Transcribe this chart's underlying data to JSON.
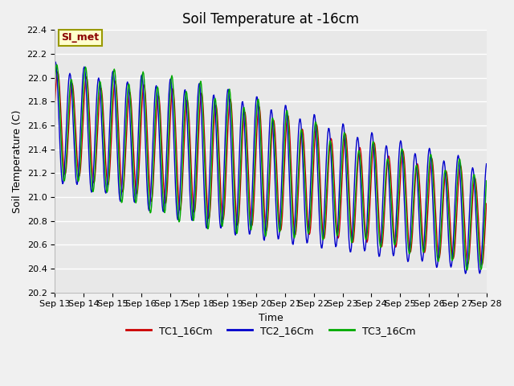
{
  "title": "Soil Temperature at -16cm",
  "xlabel": "Time",
  "ylabel": "Soil Temperature (C)",
  "ylim": [
    20.2,
    22.4
  ],
  "yticks": [
    20.2,
    20.4,
    20.6,
    20.8,
    21.0,
    21.2,
    21.4,
    21.6,
    21.8,
    22.0,
    22.2,
    22.4
  ],
  "xtick_labels": [
    "Sep 13",
    "Sep 14",
    "Sep 15",
    "Sep 16",
    "Sep 17",
    "Sep 18",
    "Sep 19",
    "Sep 20",
    "Sep 21",
    "Sep 22",
    "Sep 23",
    "Sep 24",
    "Sep 25",
    "Sep 26",
    "Sep 27",
    "Sep 28"
  ],
  "line_colors": [
    "#cc0000",
    "#0000cc",
    "#00aa00"
  ],
  "line_labels": [
    "TC1_16Cm",
    "TC2_16Cm",
    "TC3_16Cm"
  ],
  "legend_label": "SI_met",
  "fig_facecolor": "#f0f0f0",
  "ax_facecolor": "#e8e8e8",
  "title_fontsize": 12,
  "label_fontsize": 9,
  "tick_fontsize": 8,
  "legend_fontsize": 9
}
